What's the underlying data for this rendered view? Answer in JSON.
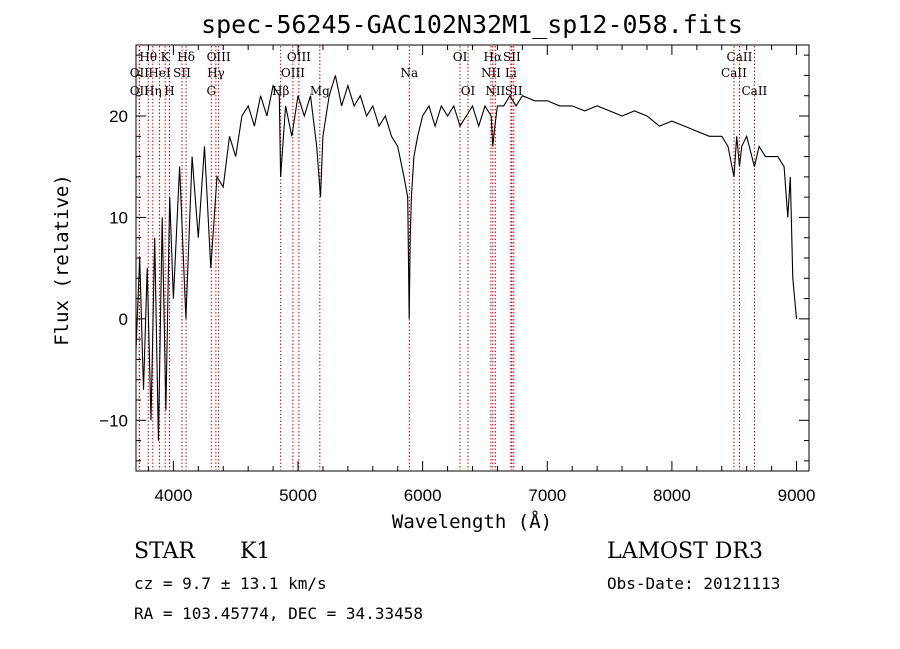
{
  "chart_data": {
    "type": "line",
    "title": "spec-56245-GAC102N32M1_sp12-058.fits",
    "xlabel": "Wavelength (Å)",
    "ylabel": "Flux (relative)",
    "xlim": [
      3700,
      9100
    ],
    "ylim": [
      -15,
      27
    ],
    "x_ticks": [
      4000,
      5000,
      6000,
      7000,
      8000,
      9000
    ],
    "x_tick_labels": [
      "4000",
      "5000",
      "6000",
      "7000",
      "8000",
      "9000"
    ],
    "y_ticks": [
      -10,
      0,
      10,
      20
    ],
    "y_tick_labels": [
      "−10",
      "0",
      "10",
      "20"
    ],
    "grid": false,
    "series": [
      {
        "color": "#000000",
        "x": [
          3700,
          3730,
          3760,
          3790,
          3820,
          3850,
          3880,
          3910,
          3940,
          3970,
          4000,
          4050,
          4100,
          4150,
          4200,
          4250,
          4300,
          4350,
          4400,
          4450,
          4500,
          4550,
          4600,
          4650,
          4700,
          4750,
          4800,
          4850,
          4860,
          4900,
          4950,
          5000,
          5050,
          5100,
          5150,
          5180,
          5200,
          5250,
          5300,
          5350,
          5400,
          5450,
          5500,
          5550,
          5600,
          5650,
          5700,
          5750,
          5800,
          5850,
          5880,
          5892,
          5900,
          5910,
          5930,
          5960,
          6000,
          6050,
          6100,
          6150,
          6200,
          6250,
          6300,
          6350,
          6400,
          6450,
          6500,
          6550,
          6563,
          6580,
          6600,
          6650,
          6700,
          6750,
          6800,
          6900,
          7000,
          7100,
          7200,
          7300,
          7400,
          7500,
          7600,
          7700,
          7800,
          7900,
          8000,
          8100,
          8200,
          8300,
          8400,
          8450,
          8498,
          8520,
          8542,
          8560,
          8600,
          8662,
          8700,
          8750,
          8800,
          8850,
          8900,
          8930,
          8950,
          8970,
          9000
        ],
        "values": [
          -3,
          6,
          -7,
          5,
          -10,
          8,
          -12,
          10,
          -9,
          12,
          2,
          15,
          0,
          16,
          8,
          17,
          5,
          14,
          13,
          18,
          16,
          20,
          21,
          19,
          22,
          20,
          23,
          22,
          14,
          21,
          18,
          22,
          20,
          22,
          17,
          12,
          18,
          22,
          24,
          21,
          23,
          21,
          22,
          20,
          21,
          19,
          20,
          18,
          17,
          14,
          12,
          0,
          8,
          12,
          16,
          18,
          20,
          21,
          19,
          21,
          20,
          21,
          19,
          20,
          21,
          19,
          21,
          20,
          17,
          19,
          21,
          21,
          22,
          21,
          22,
          21.5,
          21.5,
          21,
          21,
          20.5,
          21,
          20.5,
          20,
          20.5,
          20,
          19,
          19.5,
          19,
          18.5,
          18,
          18,
          17,
          14,
          18,
          15,
          17,
          18,
          15,
          17,
          16,
          16,
          16,
          15,
          10,
          14,
          4,
          0
        ]
      }
    ],
    "line_markers": [
      {
        "name": "Hθ",
        "x": 3798,
        "row": 1
      },
      {
        "name": "K",
        "x": 3934,
        "row": 1
      },
      {
        "name": "Hδ",
        "x": 4102,
        "row": 1
      },
      {
        "name": "OII",
        "x": 3727,
        "row": 2
      },
      {
        "name": "HeI",
        "x": 3889,
        "row": 2
      },
      {
        "name": "SII",
        "x": 4069,
        "row": 2
      },
      {
        "name": "OII",
        "x": 3727,
        "row": 3
      },
      {
        "name": "Hη",
        "x": 3835,
        "row": 3
      },
      {
        "name": "H",
        "x": 3969,
        "row": 3
      },
      {
        "name": "OIII",
        "x": 4363,
        "row": 1
      },
      {
        "name": "Hγ",
        "x": 4341,
        "row": 2
      },
      {
        "name": "G",
        "x": 4304,
        "row": 3
      },
      {
        "name": "OIII",
        "x": 5007,
        "row": 1
      },
      {
        "name": "OIII",
        "x": 4959,
        "row": 2
      },
      {
        "name": "Hβ",
        "x": 4861,
        "row": 3
      },
      {
        "name": "Mg",
        "x": 5175,
        "row": 3
      },
      {
        "name": "Na",
        "x": 5893,
        "row": 2
      },
      {
        "name": "OI",
        "x": 6300,
        "row": 1
      },
      {
        "name": "OI",
        "x": 6364,
        "row": 3
      },
      {
        "name": "Hα",
        "x": 6563,
        "row": 1
      },
      {
        "name": "SII",
        "x": 6716,
        "row": 1
      },
      {
        "name": "NII",
        "x": 6548,
        "row": 2
      },
      {
        "name": "Li",
        "x": 6708,
        "row": 2
      },
      {
        "name": "NII",
        "x": 6583,
        "row": 3
      },
      {
        "name": "SII",
        "x": 6731,
        "row": 3
      },
      {
        "name": "CaII",
        "x": 8542,
        "row": 1
      },
      {
        "name": "CaII",
        "x": 8498,
        "row": 2
      },
      {
        "name": "CaII",
        "x": 8662,
        "row": 3
      }
    ],
    "marker_color": "#cc0000"
  },
  "info": {
    "object_class": "STAR",
    "subclass": "K1",
    "survey": "LAMOST DR3",
    "redshift": "cz = 9.7 ± 13.1 km/s",
    "obs_date": "Obs-Date: 20121113",
    "coords": "RA = 103.45774, DEC =  34.33458"
  }
}
